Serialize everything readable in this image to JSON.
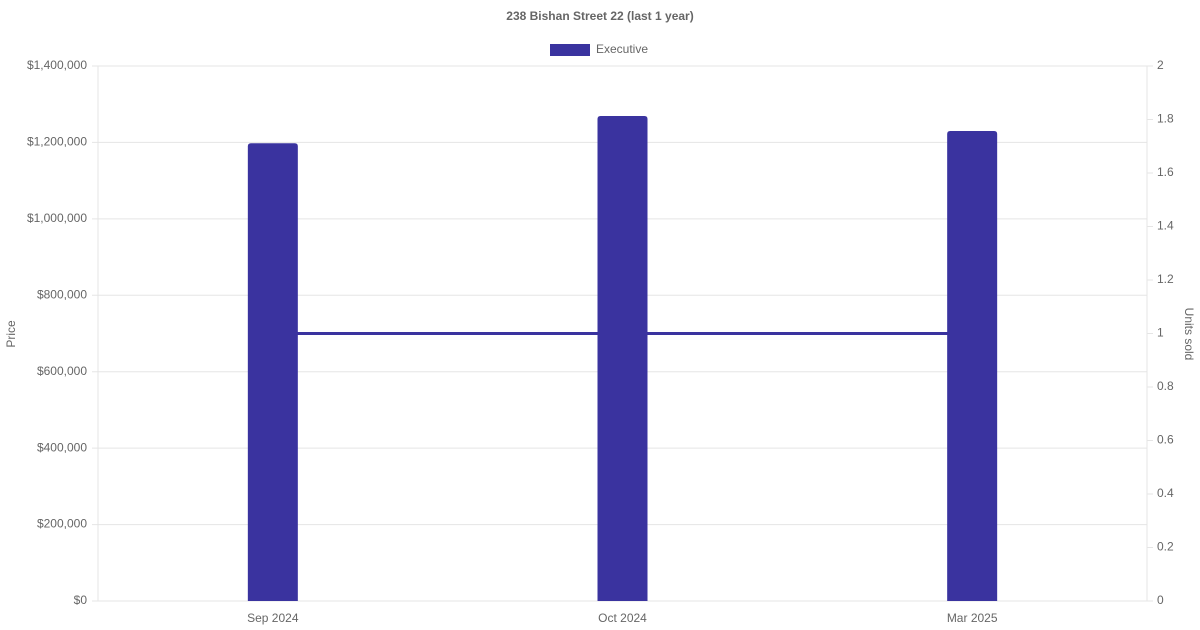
{
  "chart_data": {
    "type": "bar",
    "title": "238 Bishan Street 22 (last 1 year)",
    "categories": [
      "Sep 2024",
      "Oct 2024",
      "Mar 2025"
    ],
    "series": [
      {
        "name": "Executive",
        "color": "#3a339f",
        "values": [
          1198000,
          1269000,
          1230000
        ]
      },
      {
        "type": "line",
        "axis": "y2",
        "color": "#3a339f",
        "values": [
          1,
          1,
          1
        ]
      }
    ],
    "y_label": "Price",
    "y2_label": "Units sold",
    "ylim": [
      0,
      1400000
    ],
    "yticks": [
      {
        "value": 0,
        "label": "$0"
      },
      {
        "value": 200000,
        "label": "$200,000"
      },
      {
        "value": 400000,
        "label": "$400,000"
      },
      {
        "value": 600000,
        "label": "$600,000"
      },
      {
        "value": 800000,
        "label": "$800,000"
      },
      {
        "value": 1000000,
        "label": "$1,000,000"
      },
      {
        "value": 1200000,
        "label": "$1,200,000"
      },
      {
        "value": 1400000,
        "label": "$1,400,000"
      }
    ],
    "y2lim": [
      0,
      2
    ],
    "y2ticks": [
      0,
      0.2,
      0.4,
      0.6,
      0.8,
      1,
      1.2,
      1.4,
      1.6,
      1.8,
      2
    ],
    "grid": true,
    "legend": "top"
  }
}
